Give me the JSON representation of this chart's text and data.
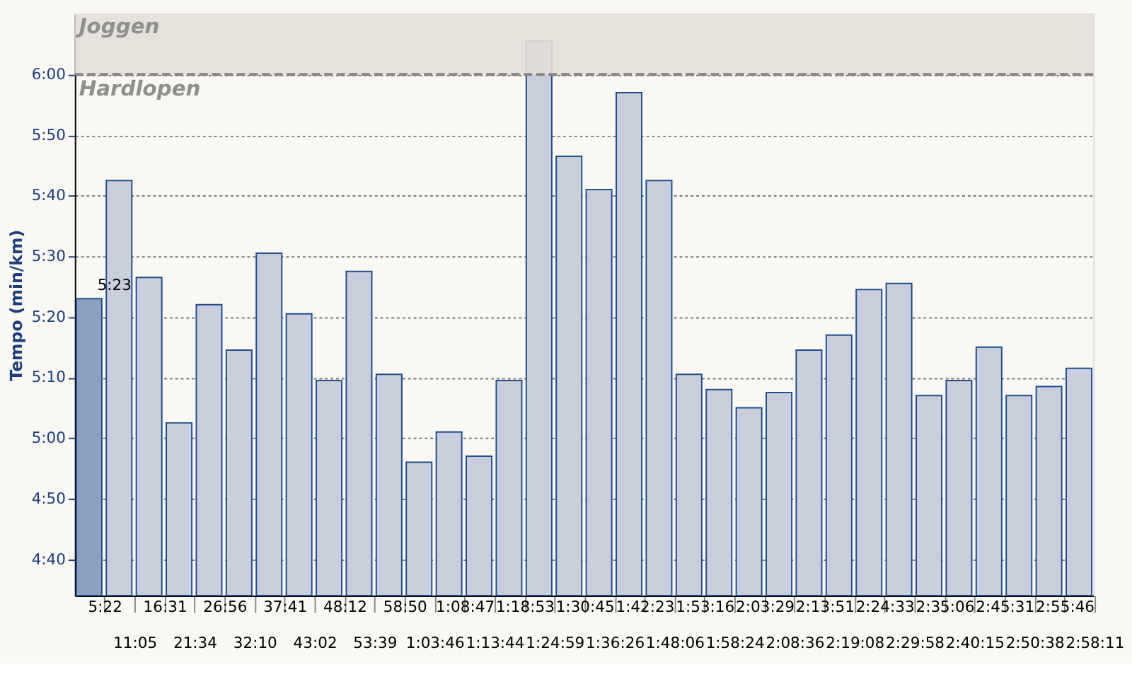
{
  "chart_data": {
    "type": "bar",
    "ylabel": "Tempo (min/km)",
    "categories": [
      "5:22",
      "11:05",
      "16:31",
      "21:34",
      "26:56",
      "32:10",
      "37:41",
      "43:02",
      "48:12",
      "53:39",
      "58:50",
      "1:03:46",
      "1:08:47",
      "1:13:44",
      "1:18:53",
      "1:24:59",
      "1:30:45",
      "1:36:26",
      "1:42:23",
      "1:48:06",
      "1:53:16",
      "1:58:24",
      "2:03:29",
      "2:08:36",
      "2:13:51",
      "2:19:08",
      "2:24:33",
      "2:29:58",
      "2:35:06",
      "2:40:15",
      "2:45:31",
      "2:50:38",
      "2:55:46",
      "2:58:11"
    ],
    "values": [
      323,
      342.5,
      326.5,
      302.5,
      322,
      314.5,
      330.5,
      320.5,
      309.5,
      327.5,
      310.5,
      296,
      301,
      297,
      309.5,
      365.5,
      346.5,
      341,
      357,
      342.5,
      310.5,
      308,
      305,
      307.5,
      314.5,
      317,
      324.5,
      325.5,
      307,
      309.5,
      315,
      307,
      308.5,
      311.5
    ],
    "colors": [
      "#8c9fbf",
      "#c8cedb",
      "#c8cedb",
      "#c8cedb",
      "#c8cedb",
      "#c8cedb",
      "#c8cedb",
      "#c8cedb",
      "#c8cedb",
      "#c8cedb",
      "#c8cedb",
      "#c8cedb",
      "#c8cedb",
      "#c8cedb",
      "#c8cedb",
      "#c8cedb",
      "#c8cedb",
      "#c8cedb",
      "#c8cedb",
      "#c8cedb",
      "#c8cedb",
      "#c8cedb",
      "#c8cedb",
      "#c8cedb",
      "#c8cedb",
      "#c8cedb",
      "#c8cedb",
      "#c8cedb",
      "#c8cedb",
      "#c8cedb",
      "#c8cedb",
      "#c8cedb",
      "#c8cedb",
      "#c8cedb"
    ],
    "ylim": [
      274,
      370
    ],
    "yticks": [
      {
        "value": 280,
        "label": "4:40"
      },
      {
        "value": 290,
        "label": "4:50"
      },
      {
        "value": 300,
        "label": "5:00"
      },
      {
        "value": 310,
        "label": "5:10"
      },
      {
        "value": 320,
        "label": "5:20"
      },
      {
        "value": 330,
        "label": "5:30"
      },
      {
        "value": 340,
        "label": "5:40"
      },
      {
        "value": 350,
        "label": "5:50"
      },
      {
        "value": 360,
        "label": "6:00"
      }
    ],
    "grid": "y",
    "bands": [
      {
        "axis": "y",
        "from": 360,
        "to": 370,
        "label": "Joggen",
        "color": "#e2ded8"
      }
    ],
    "ref_lines": [
      {
        "axis": "y",
        "value": 360,
        "label": "Hardlopen",
        "color": "#8a827e",
        "line_style": "dashed"
      }
    ],
    "annotations": [
      {
        "text": "5:23",
        "x": "5:22",
        "y": 323
      }
    ]
  }
}
